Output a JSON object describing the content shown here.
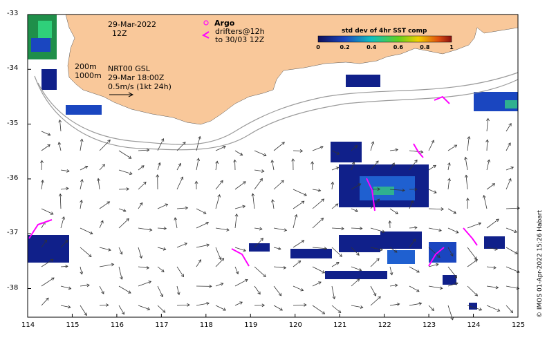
{
  "map": {
    "title_date": "29-Mar-2022",
    "title_time": "12Z",
    "isobaths": [
      "200m",
      "1000m"
    ],
    "current_info": [
      "NRT00 GSL",
      "29-Mar 18:00Z",
      "0.5m/s (1kt 24h)"
    ],
    "argo_label": "Argo",
    "drifters_label": [
      "drifters@12h",
      "to 30/03 12Z"
    ],
    "colorbar": {
      "title": "std dev of 4hr SST comp",
      "ticks": [
        "0",
        "0.2",
        "0.4",
        "0.6",
        "0.8",
        "1"
      ]
    },
    "x_ticks": [
      "114",
      "115",
      "116",
      "117",
      "118",
      "119",
      "120",
      "121",
      "122",
      "123",
      "124",
      "125"
    ],
    "y_ticks": [
      "-33",
      "-34",
      "-35",
      "-36",
      "-37",
      "-38"
    ],
    "credit": "© IMOS 01-Apr-2022 15:26 Habart",
    "colors": {
      "land": "#f9c89a",
      "drifter": "#ff00ff",
      "vector": "#333333",
      "contour": "#9a9a9a"
    }
  }
}
